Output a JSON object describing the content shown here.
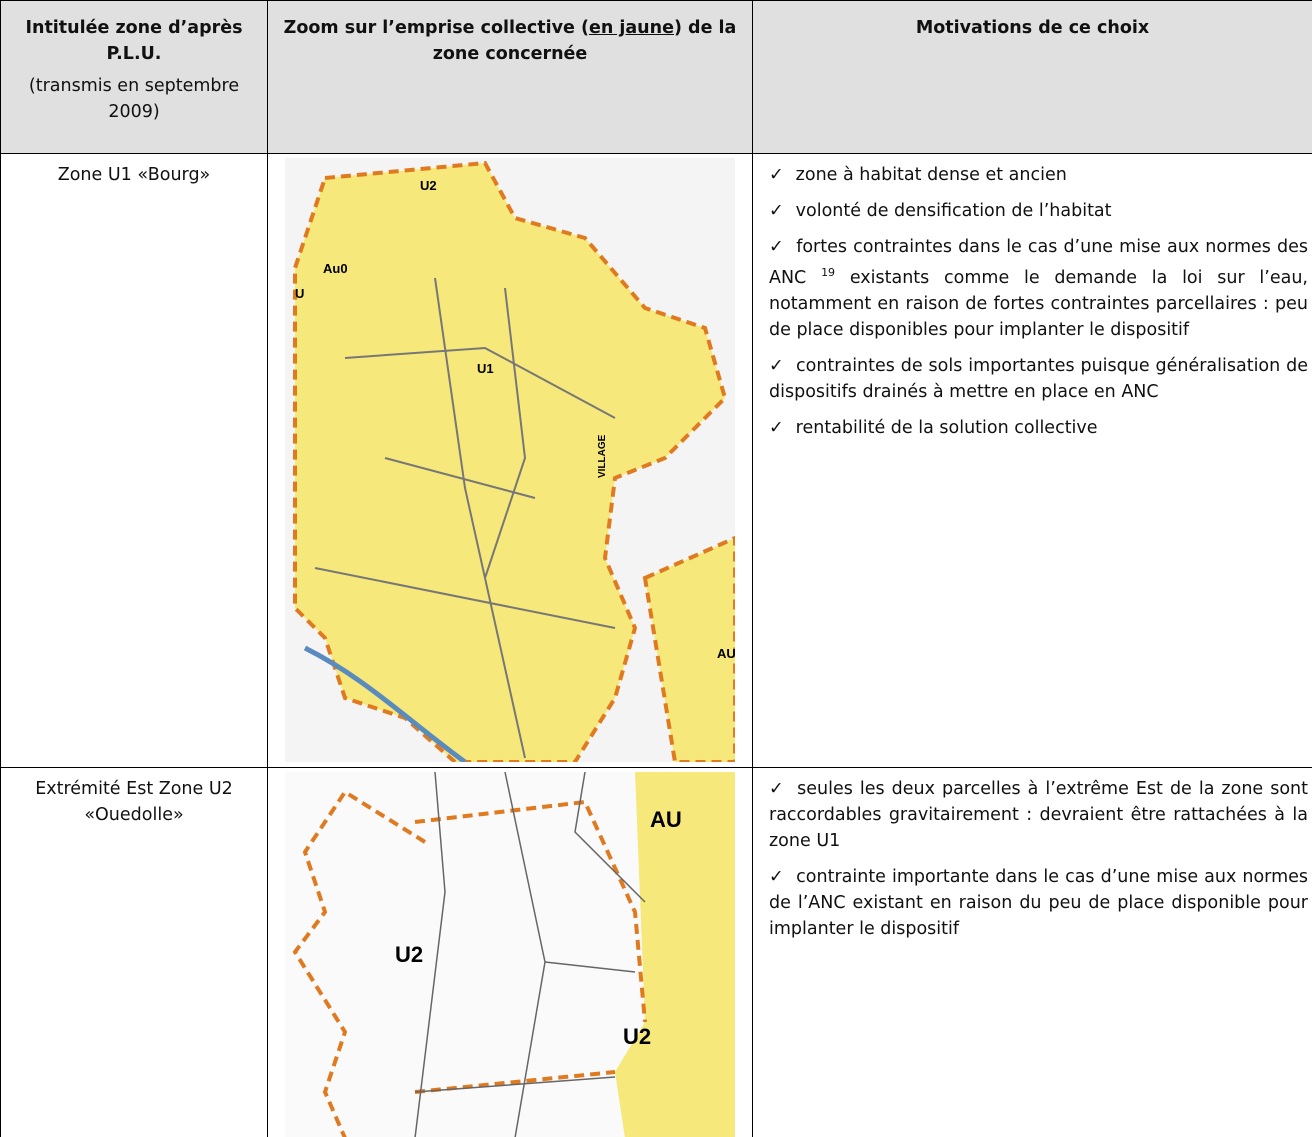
{
  "table": {
    "header": {
      "col1_title": "Intitulée zone d’après P.L.U.",
      "col1_note": "(transmis en septembre 2009)",
      "col2_title_before": "Zoom sur l’emprise collective (",
      "col2_title_underlined": "en jaune",
      "col2_title_after": ") de la zone concernée",
      "col3_title": "Motivations de ce choix"
    },
    "bullet_mark": "✓",
    "rows": [
      {
        "zone": "Zone U1 «Bourg»",
        "map_labels": [
          "U2",
          "Au0",
          "U",
          "U1",
          "VILLAGE",
          "AU"
        ],
        "bullets": [
          {
            "text": "zone à habitat dense et ancien"
          },
          {
            "text": "volonté de densification de l’habitat"
          },
          {
            "text": "fortes contraintes dans le cas d’une mise aux normes des ANC",
            "sup": "19",
            "after": "existants comme le demande la loi sur l’eau, notamment en raison de fortes contraintes parcellaires : peu de place disponibles pour implanter le dispositif"
          },
          {
            "text": "contraintes de sols importantes puisque généralisation de dispositifs drainés à mettre en place en ANC"
          },
          {
            "text": "rentabilité de la solution collective"
          }
        ]
      },
      {
        "zone": "Extrémité Est Zone U2 «Ouedolle»",
        "map_labels": [
          "AU",
          "U2",
          "U2"
        ],
        "bullets": [
          {
            "text": "seules les deux parcelles à l’extrême Est de la zone sont raccordables gravitairement : devraient être rattachées à la zone U1"
          },
          {
            "text": "contrainte importante dans le cas d’une mise aux normes de l’ANC existant en raison du peu de place disponible pour implanter le dispositif"
          }
        ]
      }
    ]
  }
}
